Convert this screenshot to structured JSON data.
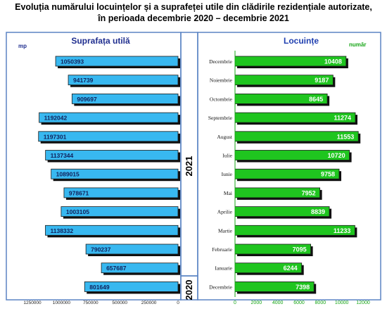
{
  "title_line1": "Evoluția numărului locuințelor și a suprafeței utile din clădirile rezidențiale autorizate,",
  "title_line2": "în perioada decembrie 2020 – decembrie 2021",
  "colors": {
    "left_bar": "#38B8F0",
    "right_bar": "#1FC51F",
    "shadow": "#101010",
    "frame": "#5B84C4",
    "left_title": "#1F2E8F",
    "right_title": "#1F3FB0",
    "unit_left": "#1F2E8F",
    "unit_right": "#16A516"
  },
  "year_labels": {
    "upper": "2021",
    "lower": "2020"
  },
  "chart_data": [
    {
      "type": "bar",
      "orientation": "horizontal",
      "title": "Suprafața utilă",
      "unit": "mp",
      "categories": [
        "Decembrie",
        "Noiembrie",
        "Octombrie",
        "Septembrie",
        "August",
        "Iulie",
        "Iunie",
        "Mai",
        "Aprilie",
        "Martie",
        "Februarie",
        "Ianuarie",
        "Decembrie"
      ],
      "values": [
        1050393,
        941739,
        909697,
        1192042,
        1197301,
        1137344,
        1089015,
        978671,
        1003105,
        1138332,
        790237,
        657687,
        801649
      ],
      "xlim": [
        0,
        1250000
      ],
      "xticks": [
        1250000,
        1000000,
        750000,
        500000,
        250000,
        0
      ],
      "reversed_axis": true,
      "grid": false
    },
    {
      "type": "bar",
      "orientation": "horizontal",
      "title": "Locuințe",
      "unit": "număr",
      "categories": [
        "Decembrie",
        "Noiembrie",
        "Octombrie",
        "Septembrie",
        "August",
        "Iulie",
        "Iunie",
        "Mai",
        "Aprilie",
        "Martie",
        "Februarie",
        "Ianuarie",
        "Decembrie"
      ],
      "values": [
        10408,
        9187,
        8645,
        11274,
        11553,
        10720,
        9758,
        7952,
        8839,
        11233,
        7095,
        6244,
        7398
      ],
      "xlim": [
        0,
        12000
      ],
      "xticks": [
        0,
        2000,
        4000,
        6000,
        8000,
        10000,
        12000
      ],
      "grid": false
    }
  ]
}
